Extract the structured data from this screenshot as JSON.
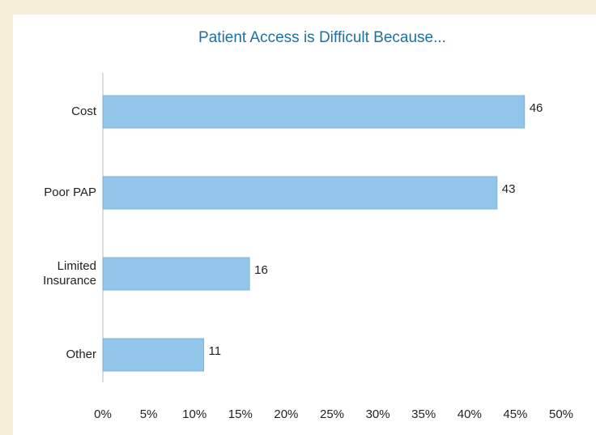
{
  "chart_data": {
    "type": "bar",
    "orientation": "horizontal",
    "title": "Patient Access is Difficult Because...",
    "categories": [
      "Cost",
      "Poor PAP",
      "Limited Insurance",
      "Other"
    ],
    "values": [
      46,
      43,
      16,
      11
    ],
    "color": "#92c5ea",
    "xlim": [
      0,
      50
    ],
    "xticks": [
      {
        "value": 0,
        "label": "0%"
      },
      {
        "value": 5,
        "label": "5%"
      },
      {
        "value": 10,
        "label": "10%"
      },
      {
        "value": 15,
        "label": "15%"
      },
      {
        "value": 20,
        "label": "20%"
      },
      {
        "value": 25,
        "label": "25%"
      },
      {
        "value": 30,
        "label": "30%"
      },
      {
        "value": 35,
        "label": "35%"
      },
      {
        "value": 40,
        "label": "40%"
      },
      {
        "value": 45,
        "label": "45%"
      },
      {
        "value": 50,
        "label": "50%"
      }
    ],
    "grid": false
  }
}
